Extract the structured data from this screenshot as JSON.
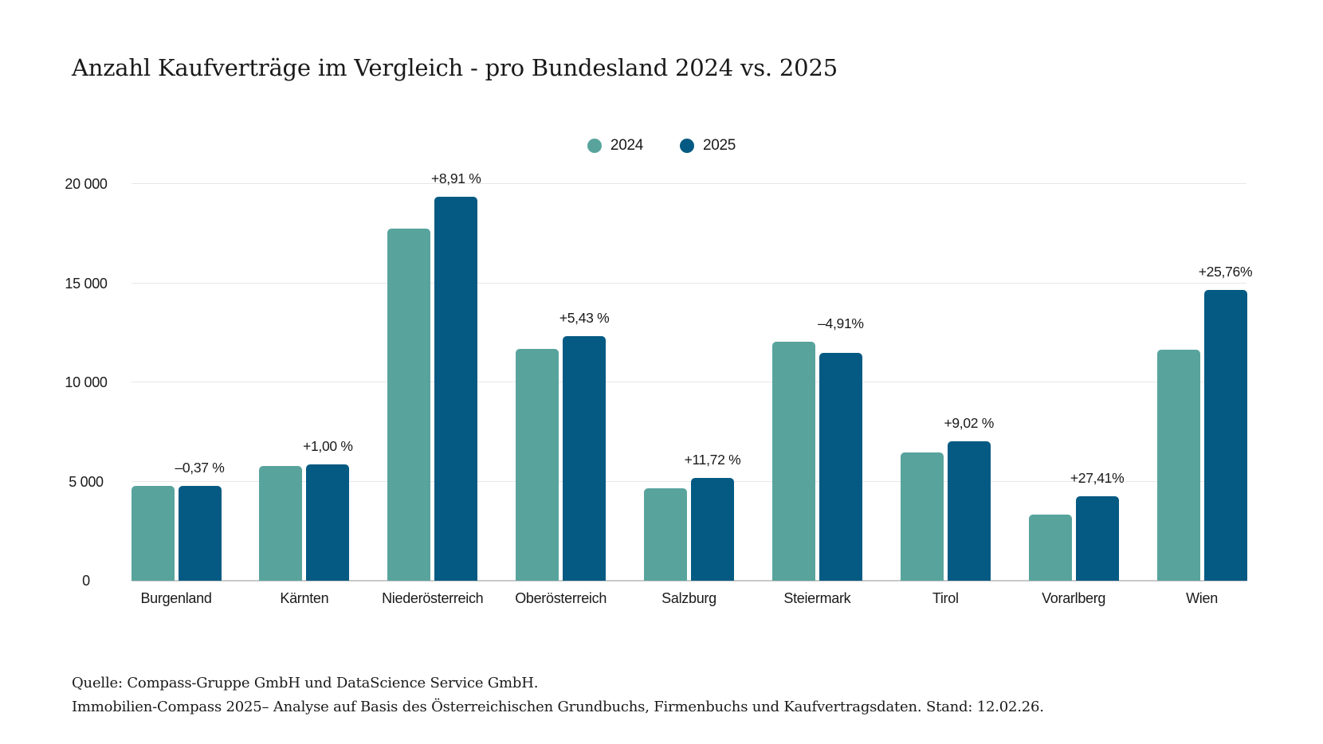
{
  "title": "Anzahl Kaufverträge im Vergleich - pro Bundesland 2024 vs. 2025",
  "colors": {
    "series_2024": "#58A49D",
    "series_2025": "#045A82",
    "grid": "#e7e7e7",
    "baseline": "#c9c9c9",
    "text": "#1a1a1a"
  },
  "chart_data": {
    "type": "bar",
    "title": "Anzahl Kaufverträge im Vergleich - pro Bundesland 2024 vs. 2025",
    "categories": [
      "Burgenland",
      "Kärnten",
      "Niederösterreich",
      "Oberösterreich",
      "Salzburg",
      "Steiermark",
      "Tirol",
      "Vorarlberg",
      "Wien"
    ],
    "series": [
      {
        "name": "2024",
        "color": "#58A49D",
        "values": [
          4780,
          5790,
          17770,
          11690,
          4650,
          12060,
          6450,
          3350,
          11650
        ]
      },
      {
        "name": "2025",
        "color": "#045A82",
        "values": [
          4762,
          5848,
          19353,
          12325,
          5195,
          11468,
          7032,
          4268,
          14651
        ]
      }
    ],
    "change_labels": [
      "–0,37 %",
      "+1,00 %",
      "+8,91 %",
      "+5,43 %",
      "+11,72 %",
      "–4,91%",
      "+9,02 %",
      "+27,41%",
      "+25,76%"
    ],
    "xlabel": "",
    "ylabel": "",
    "ylim": [
      0,
      20000
    ],
    "yticks": [
      0,
      5000,
      10000,
      15000,
      20000
    ],
    "ytick_labels": [
      "0",
      "5 000",
      "10 000",
      "15 000",
      "20 000"
    ],
    "grid": true,
    "legend_position": "top-center"
  },
  "footer": {
    "line1": "Quelle: Compass-Gruppe GmbH und DataScience Service GmbH.",
    "line2": "Immobilien-Compass 2025– Analyse auf Basis des Österreichischen Grundbuchs, Firmenbuchs und Kaufvertragsdaten. Stand: 12.02.26."
  }
}
